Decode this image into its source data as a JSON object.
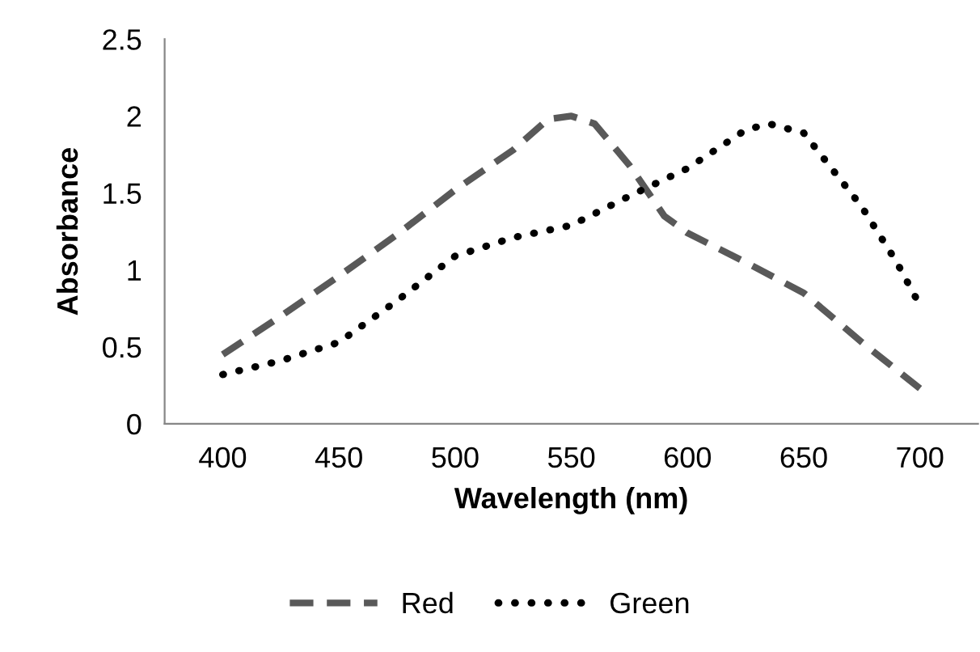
{
  "chart_data": {
    "type": "line",
    "xlabel": "Wavelength (nm)",
    "ylabel": "Absorbance",
    "series": [
      {
        "name": "Red",
        "color": "#595959",
        "line_style": "dashed",
        "x": [
          400,
          425,
          450,
          475,
          500,
          525,
          540,
          550,
          560,
          575,
          590,
          600,
          625,
          650,
          675,
          700
        ],
        "values": [
          0.45,
          0.7,
          0.96,
          1.23,
          1.52,
          1.78,
          1.98,
          2.0,
          1.95,
          1.68,
          1.35,
          1.24,
          1.05,
          0.85,
          0.53,
          0.23
        ]
      },
      {
        "name": "Green",
        "color": "#000000",
        "line_style": "dotted",
        "x": [
          400,
          425,
          450,
          475,
          500,
          525,
          550,
          575,
          600,
          625,
          635,
          650,
          675,
          690,
          700
        ],
        "values": [
          0.32,
          0.41,
          0.53,
          0.8,
          1.09,
          1.21,
          1.29,
          1.48,
          1.66,
          1.91,
          1.95,
          1.89,
          1.41,
          1.05,
          0.77
        ]
      }
    ],
    "xlim": [
      375,
      725
    ],
    "xticks": [
      400,
      450,
      500,
      550,
      600,
      650,
      700
    ],
    "ylim": [
      0,
      2.5
    ],
    "yticks": [
      0,
      0.5,
      1,
      1.5,
      2,
      2.5
    ],
    "grid": false,
    "legend": "bottom",
    "marker": "none"
  }
}
